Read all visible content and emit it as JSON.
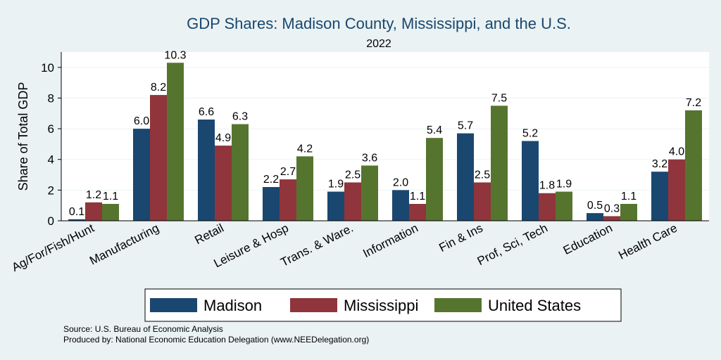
{
  "chart_data": {
    "type": "bar",
    "title": "GDP Shares: Madison County, Mississippi, and the U.S.",
    "subtitle": "2022",
    "ylabel": "Share of Total GDP",
    "xlabel": "",
    "ylim": [
      0,
      11
    ],
    "yticks": [
      0,
      2,
      4,
      6,
      8,
      10
    ],
    "grid": "horizontal",
    "legend_position": "bottom",
    "categories": [
      "Ag/For/Fish/Hunt",
      "Manufacturing",
      "Retail",
      "Leisure & Hosp",
      "Trans. & Ware.",
      "Information",
      "Fin & Ins",
      "Prof, Sci, Tech",
      "Education",
      "Health Care"
    ],
    "series": [
      {
        "name": "Madison",
        "color": "#1a476f",
        "values": [
          0.1,
          6.0,
          6.6,
          2.2,
          1.9,
          2.0,
          5.7,
          5.2,
          0.5,
          3.2
        ],
        "labels": [
          "0.1",
          "6.0",
          "6.6",
          "2.2",
          "1.9",
          "2.0",
          "5.7",
          "5.2",
          "0.5",
          "3.2"
        ]
      },
      {
        "name": "Mississippi",
        "color": "#90353b",
        "values": [
          1.2,
          8.2,
          4.9,
          2.7,
          2.5,
          1.1,
          2.5,
          1.8,
          0.3,
          4.0
        ],
        "labels": [
          "1.2",
          "8.2",
          "4.9",
          "2.7",
          "2.5",
          "1.1",
          "2.5",
          "1.8",
          "0.3",
          "4.0"
        ]
      },
      {
        "name": "United States",
        "color": "#55752f",
        "values": [
          1.1,
          10.3,
          6.3,
          4.2,
          3.6,
          5.4,
          7.5,
          1.9,
          1.1,
          7.2
        ],
        "labels": [
          "1.1",
          "10.3",
          "6.3",
          "4.2",
          "3.6",
          "5.4",
          "7.5",
          "1.9",
          "1.1",
          "7.2"
        ]
      }
    ]
  },
  "notes": {
    "source": "Source: U.S. Bureau of Economic Analysis",
    "produced_by": "Produced by: National Economic Education Delegation (www.NEEDelegation.org)"
  }
}
